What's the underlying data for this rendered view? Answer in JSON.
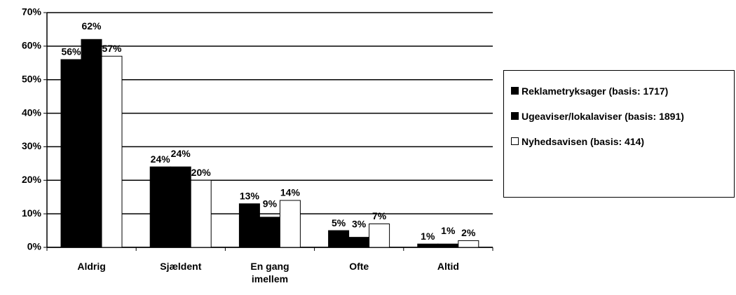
{
  "chart_data": {
    "type": "bar",
    "categories": [
      "Aldrig",
      "Sjældent",
      "En gang imellem",
      "Ofte",
      "Altid"
    ],
    "series": [
      {
        "name": "Reklametryksager (basis: 1717)",
        "color": "#000000",
        "values": [
          56,
          24,
          13,
          5,
          1
        ],
        "value_labels": [
          "56%",
          "24%",
          "13%",
          "5%",
          "1%"
        ]
      },
      {
        "name": "Ugeaviser/lokalaviser (basis: 1891)",
        "color": "#000000",
        "values": [
          62,
          24,
          9,
          3,
          1
        ],
        "value_labels": [
          "62%",
          "24%",
          "9%",
          "3%",
          "1%"
        ]
      },
      {
        "name": "Nyhedsavisen (basis: 414)",
        "color": "#ffffff",
        "values": [
          57,
          20,
          14,
          7,
          2
        ],
        "value_labels": [
          "57%",
          "20%",
          "14%",
          "7%",
          "2%"
        ]
      }
    ],
    "ylim": [
      0,
      70
    ],
    "yticks": [
      {
        "value": 0,
        "label": "0%"
      },
      {
        "value": 10,
        "label": "10%"
      },
      {
        "value": 20,
        "label": "20%"
      },
      {
        "value": 30,
        "label": "30%"
      },
      {
        "value": 40,
        "label": "40%"
      },
      {
        "value": 50,
        "label": "50%"
      },
      {
        "value": 60,
        "label": "60%"
      },
      {
        "value": 70,
        "label": "70%"
      }
    ],
    "grid": true,
    "legend": "right"
  }
}
